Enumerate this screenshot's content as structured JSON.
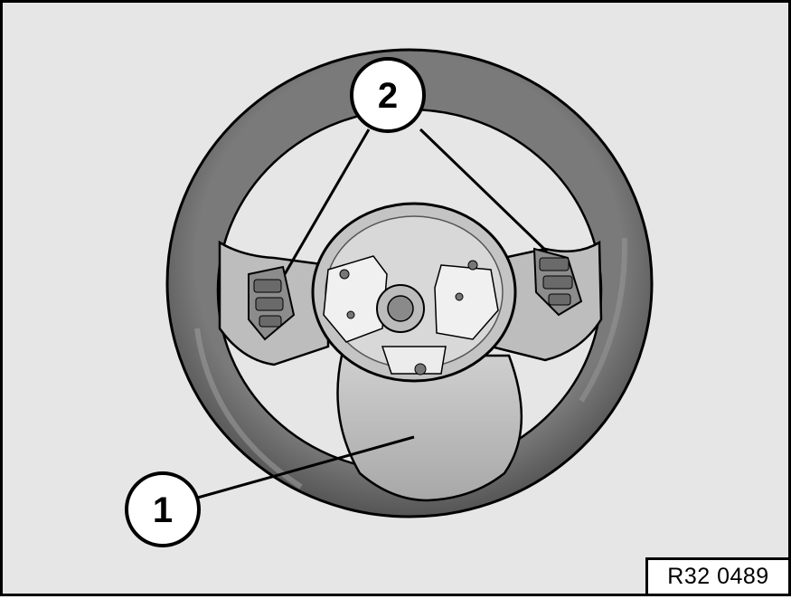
{
  "figure": {
    "reference_code": "R32 0489",
    "callouts": [
      {
        "id": "1",
        "label": "1"
      },
      {
        "id": "2",
        "label": "2"
      }
    ]
  },
  "colors": {
    "background": "#e6e6e6",
    "rim": "#6e6e6e",
    "spoke": "#b3b3b3",
    "outline": "#000000"
  }
}
